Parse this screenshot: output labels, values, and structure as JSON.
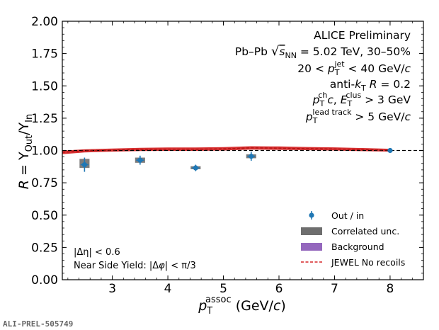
{
  "chart_data": {
    "type": "scatter",
    "title": "",
    "xlabel": "p_T^assoc (GeV/c)",
    "ylabel": "R = Y_Out/Y_In",
    "xlim": [
      2.1,
      8.6
    ],
    "ylim": [
      0.0,
      2.0
    ],
    "x_ticks": [
      "3",
      "4",
      "5",
      "6",
      "7",
      "8"
    ],
    "y_ticks": [
      "0.00",
      "0.25",
      "0.50",
      "0.75",
      "1.00",
      "1.25",
      "1.50",
      "1.75",
      "2.00"
    ],
    "reference_line": 1.0,
    "grid": false,
    "legend_position": "bottom-right",
    "series": [
      {
        "name": "Out / in",
        "color": "#1f77b4",
        "points": [
          {
            "x": 2.5,
            "y": 0.89,
            "yerr": 0.055,
            "xerr": 0.07
          },
          {
            "x": 3.5,
            "y": 0.925,
            "yerr": 0.035,
            "xerr": 0.07
          },
          {
            "x": 4.5,
            "y": 0.865,
            "yerr": 0.025,
            "xerr": 0.07
          },
          {
            "x": 5.5,
            "y": 0.955,
            "yerr": 0.035,
            "xerr": 0.07
          },
          {
            "x": 8.0,
            "y": 1.0,
            "yerr": 0.01,
            "xerr": 0.0
          }
        ]
      },
      {
        "name": "Correlated unc.",
        "color": "#6e6e6e",
        "boxes": [
          {
            "x": 2.5,
            "lo": 0.865,
            "hi": 0.935,
            "halfwidth": 0.09
          },
          {
            "x": 3.5,
            "lo": 0.905,
            "hi": 0.945,
            "halfwidth": 0.09
          },
          {
            "x": 4.5,
            "lo": 0.855,
            "hi": 0.878,
            "halfwidth": 0.09
          },
          {
            "x": 5.5,
            "lo": 0.94,
            "hi": 0.97,
            "halfwidth": 0.09
          },
          {
            "x": 8.0,
            "lo": 0.995,
            "hi": 1.005,
            "halfwidth": 0.04
          }
        ]
      },
      {
        "name": "Background",
        "color": "#9467bd",
        "band": []
      },
      {
        "name": "JEWEL No recoils",
        "color": "#d62728",
        "x": [
          2.1,
          2.5,
          3.0,
          3.5,
          4.0,
          4.5,
          5.0,
          5.5,
          6.0,
          6.5,
          7.0,
          7.5,
          8.0
        ],
        "y": [
          0.985,
          0.997,
          1.003,
          1.008,
          1.01,
          1.01,
          1.013,
          1.02,
          1.018,
          1.015,
          1.012,
          1.007,
          1.002
        ],
        "band_halfwidth": [
          0.014,
          0.012,
          0.012,
          0.012,
          0.013,
          0.013,
          0.013,
          0.013,
          0.013,
          0.012,
          0.012,
          0.012,
          0.011
        ]
      }
    ],
    "annotations": {
      "experiment": "ALICE Preliminary",
      "system": "Pb–Pb √sNN = 5.02 TeV, 30–50%",
      "jet_pt": "20 < p_T^jet < 40 GeV/c",
      "algo": "anti-k_T R = 0.2",
      "constituents": "p_T^ch c, E_T^clus > 3 GeV",
      "lead_track": "p_T^lead track > 5 GeV/c",
      "deta_cut": "|Δη| < 0.6",
      "near_side": "Near Side Yield: |Δφ| < π/3"
    }
  },
  "figure_id": "ALI-PREL-505749",
  "ylabel_parts": {
    "a": "R",
    "b": " = Y",
    "c": "Out",
    "d": "/Y",
    "e": "In"
  },
  "xlabel_parts": {
    "a": "p",
    "b": "T",
    "c": "assoc",
    "d": " (GeV/",
    "e": "c",
    "f": ")"
  },
  "text_parts": {
    "experiment": "ALICE Preliminary",
    "system_a": "Pb–Pb ",
    "system_sqrt": "√",
    "system_b": "s",
    "system_c": "NN",
    "system_d": " = 5.02 TeV, 30–50%",
    "jet_a": "20 < ",
    "jet_p": "p",
    "jet_sub": "T",
    "jet_sup": "jet",
    "jet_b": " < 40 GeV/",
    "jet_c": "c",
    "algo_a": "anti-",
    "algo_k": "k",
    "algo_sub": "T",
    "algo_b": " ",
    "algo_R": "R",
    "algo_c": " = 0.2",
    "con_p": "p",
    "con_sub": "T",
    "con_sup": "ch",
    "con_c": "c",
    "con_a": ", ",
    "con_E": "E",
    "con_sub2": "T",
    "con_sup2": "clus",
    "con_b": " > 3 GeV",
    "lead_p": "p",
    "lead_sub": "T",
    "lead_sup": "lead track",
    "lead_b": " > 5 GeV/",
    "lead_c": "c",
    "deta": "|Δη| < 0.6",
    "near_a": "Near Side Yield: |Δ",
    "near_phi": "φ",
    "near_b": "| < π/3"
  }
}
